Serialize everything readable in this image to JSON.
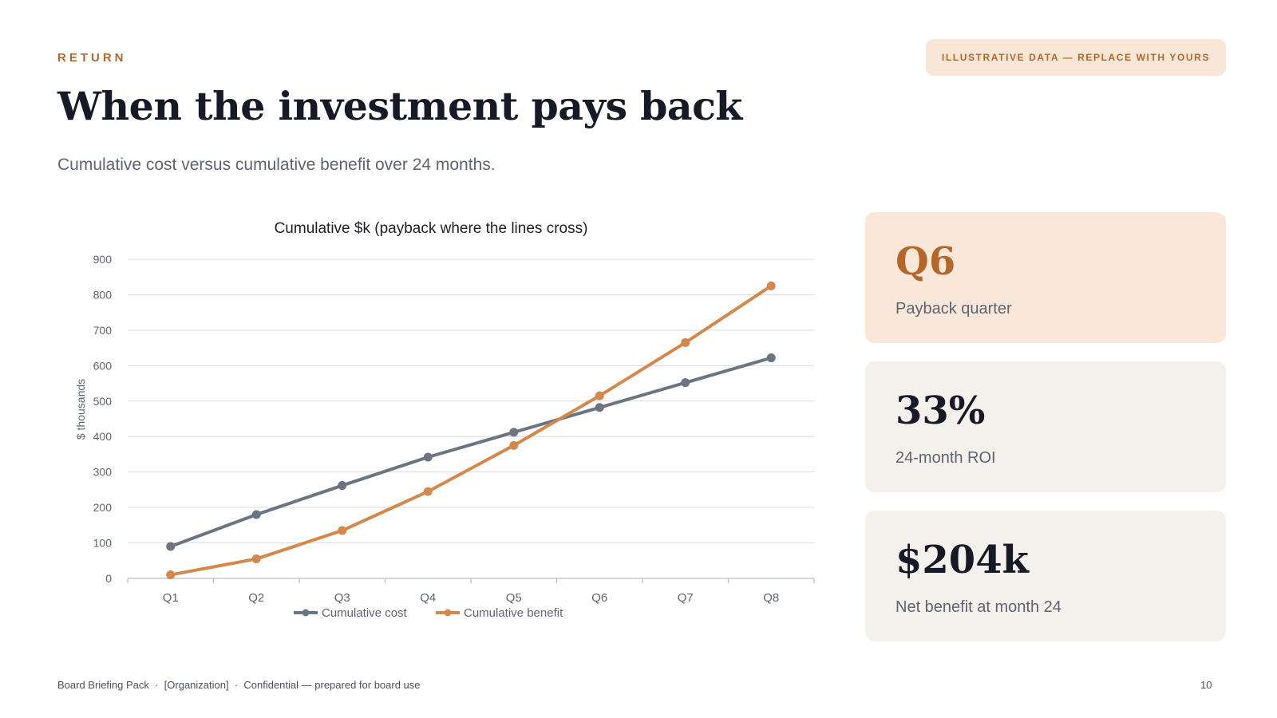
{
  "header": {
    "eyebrow": "RETURN",
    "badge": "ILLUSTRATIVE DATA — REPLACE WITH YOURS",
    "title": "When the investment pays back",
    "subtitle": "Cumulative cost versus cumulative benefit over 24 months."
  },
  "chart_data": {
    "type": "line",
    "title": "Cumulative $k (payback where the lines cross)",
    "xlabel": "",
    "ylabel": "$ thousands",
    "categories": [
      "Q1",
      "Q2",
      "Q3",
      "Q4",
      "Q5",
      "Q6",
      "Q7",
      "Q8"
    ],
    "ylim": [
      0,
      900
    ],
    "yticks": [
      0,
      100,
      200,
      300,
      400,
      500,
      600,
      700,
      800,
      900
    ],
    "grid": true,
    "legend_position": "bottom",
    "series": [
      {
        "name": "Cumulative cost",
        "color": "#6b7482",
        "values": [
          90,
          180,
          262,
          342,
          412,
          482,
          552,
          622
        ]
      },
      {
        "name": "Cumulative benefit",
        "color": "#d4884b",
        "values": [
          10,
          55,
          135,
          245,
          375,
          515,
          665,
          825
        ]
      }
    ]
  },
  "kpis": [
    {
      "value": "Q6",
      "label": "Payback quarter"
    },
    {
      "value": "33%",
      "label": "24-month ROI"
    },
    {
      "value": "$204k",
      "label": "Net benefit at month 24"
    }
  ],
  "footer": {
    "text": "Board Briefing Pack  ·  [Organization]  ·  Confidential — prepared for board use",
    "page": "10"
  },
  "colors": {
    "accent": "#b5672a",
    "accent_bg": "#f9e8da",
    "neutral_bg": "#f4f1ec"
  }
}
